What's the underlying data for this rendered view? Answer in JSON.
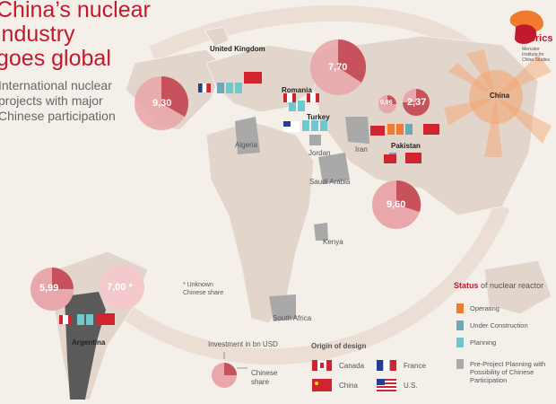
{
  "title_line1": "China’s nuclear industry",
  "title_line2": "goes global",
  "subtitle": "International nuclear projects with major Chinese participation",
  "logo": {
    "name": "merics",
    "sub": "Mercator Institute for China Studies"
  },
  "countries": {
    "uk": "United Kingdom",
    "romania": "Romania",
    "turkey": "Turkey",
    "pakistan": "Pakistan",
    "china": "China",
    "argentina": "Argentina",
    "algeria": "Algeria",
    "jordan": "Jordan",
    "iran": "Iran",
    "saudi": "Saudi Arabia",
    "kenya": "Kenya",
    "south_africa": "South Africa"
  },
  "investments": {
    "uk": "9,30",
    "romania": "7,70",
    "turkey_small": "0,96",
    "pakistan_a": "2,37",
    "pakistan_b": "9,60",
    "argentina_a": "5,99",
    "argentina_b": "7,00 *"
  },
  "unknown_note": "* Unknown Chinese share",
  "legend": {
    "status_title_a": "Status",
    "status_title_b": "of nuclear reactor",
    "operating": "Operating",
    "under_construction": "Under Construction",
    "planning": "Planning",
    "pre_project": "Pre-Project Planning with Possibility of Chinese Participation",
    "investment_title": "Investment in bn USD",
    "chinese_share": "Chinese share",
    "origin_title": "Origin of design",
    "canada": "Canada",
    "france": "France",
    "china": "China",
    "us": "U.S."
  },
  "colors": {
    "accent": "#c4182c",
    "operating": "#f07a2d",
    "construction": "#6fa7b9",
    "planning": "#6fc8cb",
    "pre_project": "#aaaaaa"
  }
}
